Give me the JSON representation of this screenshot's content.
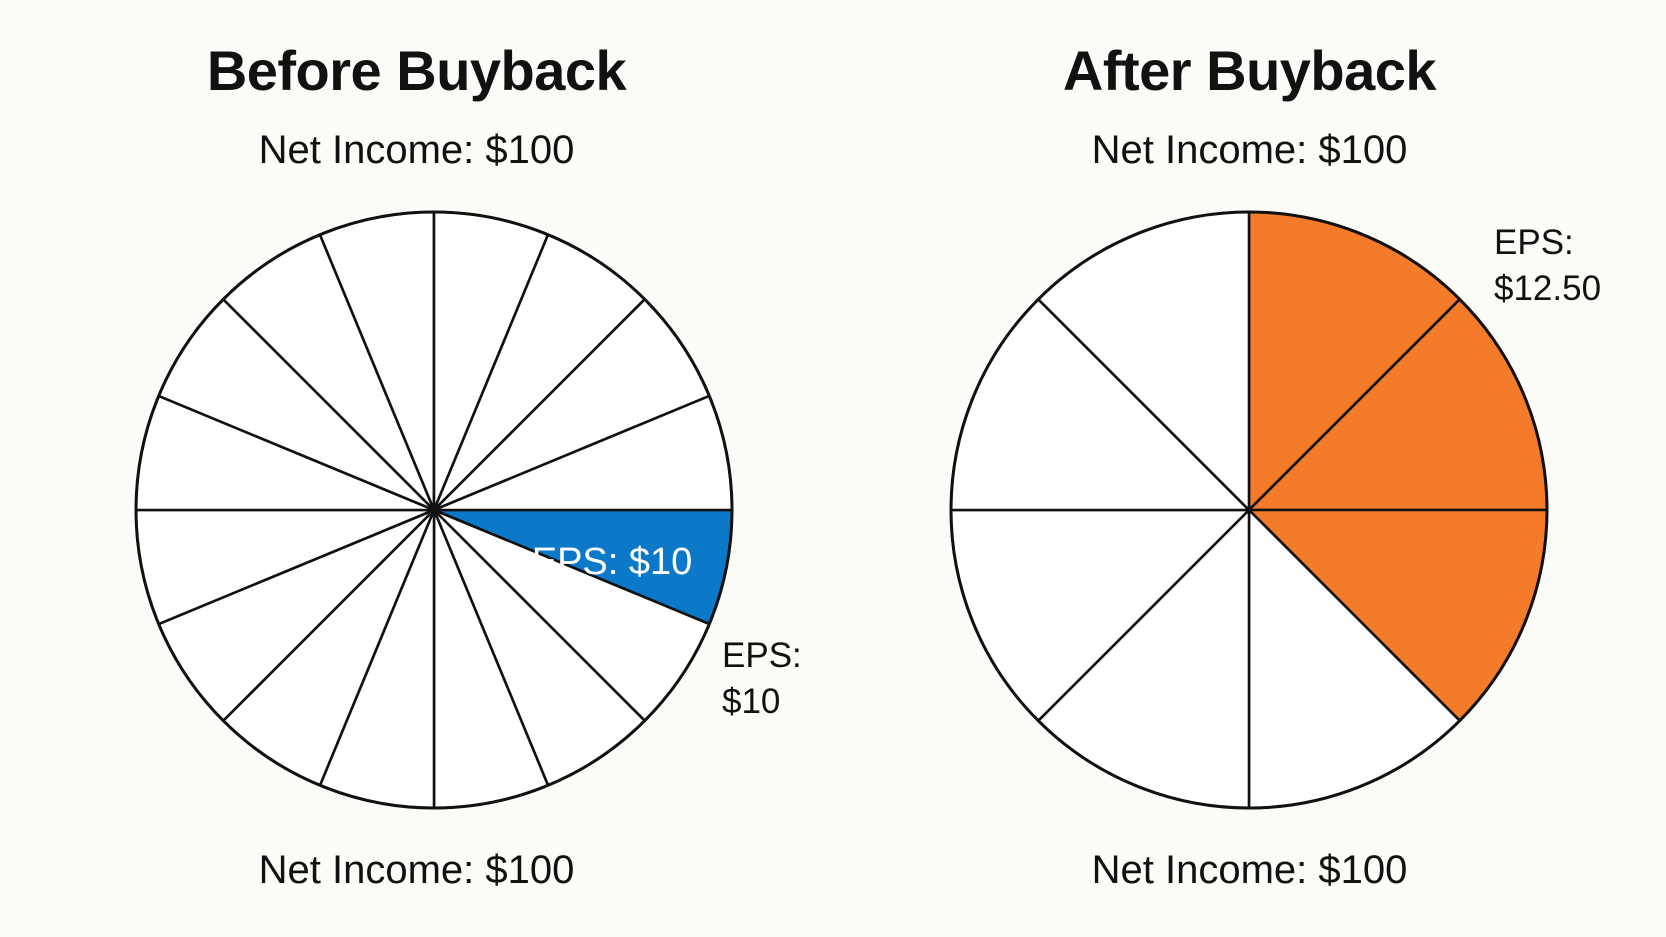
{
  "chart_data": [
    {
      "type": "pie",
      "title": "Before Buyback",
      "subtitle_top": "Net Income: $100",
      "subtitle_bottom": "Net Income: $100",
      "slices": 16,
      "highlighted_slice": 0,
      "highlight_color": "#0b78c8",
      "inner_label": "EPS: $10",
      "callout_line1": "EPS:",
      "callout_line2": "$10",
      "eps": 10,
      "net_income": 100
    },
    {
      "type": "pie",
      "title": "After Buyback",
      "subtitle_top": "Net Income: $100",
      "subtitle_bottom": "Net Income: $100",
      "slices": 8,
      "highlighted_slices": [
        0,
        1,
        2
      ],
      "highlight_color": "#f47b2a",
      "callout_line1": "EPS:",
      "callout_line2": "$12.50",
      "eps": 12.5,
      "net_income": 100
    }
  ]
}
